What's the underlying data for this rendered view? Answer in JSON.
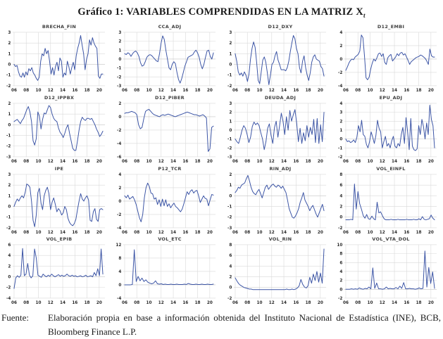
{
  "page": {
    "title_prefix": "Gráfico 1: ",
    "title_main": "VARIABLES COMPRENDIDAS EN LA MATRIZ X",
    "title_subscript": "t"
  },
  "footer": {
    "label": "Fuente:",
    "text": "Elaboración propia en base a información obtenida del Instituto Nacional de Estadística (INE), BCB, Bloomberg Finance L.P."
  },
  "colors": {
    "line": "#3B54A5",
    "grid": "#d9d9d9",
    "tick_text": "#2b2b2b",
    "subplot_title": "#404040"
  },
  "x_axis": {
    "lim": [
      2005.75,
      2020.95
    ],
    "ticks": [
      2006,
      2008,
      2010,
      2012,
      2014,
      2016,
      2018,
      2020
    ],
    "labels": [
      "06",
      "08",
      "10",
      "12",
      "14",
      "16",
      "18",
      "20"
    ],
    "data_start": 2006.0,
    "data_end": 2020.6
  },
  "chart_data": [
    {
      "type": "line",
      "title": "BRECHA_FIN",
      "ylim": [
        -2,
        3
      ],
      "yticks": [
        -2,
        -1,
        0,
        1,
        2,
        3
      ],
      "values": [
        0,
        -0.2,
        -0.1,
        -0.7,
        -1.1,
        -1.2,
        -0.8,
        -1.2,
        -0.7,
        -1.0,
        -0.4,
        -0.6,
        -0.3,
        -0.8,
        -1.0,
        -1.3,
        -1.5,
        -1.2,
        0.3,
        1.0,
        0.8,
        1.5,
        1.0,
        1.3,
        0.3,
        -0.9,
        -0.3,
        -1.0,
        -0.2,
        0.2,
        -0.6,
        0.6,
        0.3,
        -1.2,
        -0.8,
        -1.0,
        0.3,
        -0.2,
        -0.9,
        -0.3,
        0.2,
        -0.5,
        0.8,
        1.5,
        2.0,
        2.7,
        1.8,
        1.0,
        -0.5,
        0.5,
        1.0,
        2.3,
        1.8,
        2.5,
        2.0,
        1.7,
        1.5,
        -1.1,
        -1.3,
        -0.9,
        -0.9
      ]
    },
    {
      "type": "line",
      "title": "CCA_ADJ",
      "ylim": [
        -3,
        3
      ],
      "yticks": [
        -3,
        -2,
        -1,
        0,
        1,
        2,
        3
      ],
      "values": [
        0.6,
        0.5,
        0.7,
        0.6,
        0.3,
        0.6,
        0.8,
        0.9,
        0.7,
        0.3,
        -0.4,
        -0.8,
        -0.7,
        -0.3,
        0.2,
        0.4,
        0.5,
        0.4,
        0.2,
        0,
        -0.2,
        -0.3,
        0.6,
        1.8,
        2.6,
        2.2,
        1.0,
        0,
        -1.0,
        -1.2,
        -0.6,
        -0.3,
        -0.5,
        -1.5,
        -2.3,
        -2.7,
        -2.2,
        -1.5,
        -0.8,
        -0.3,
        0.2,
        0.3,
        0.4,
        0.5,
        0.8,
        1.0,
        0.7,
        0.2,
        -0.6,
        -1.1,
        -0.6,
        0.2,
        0.9,
        1.0,
        0.3,
        0,
        0.7
      ]
    },
    {
      "type": "line",
      "title": "D12_DXY",
      "ylim": [
        -2,
        3
      ],
      "yticks": [
        -2,
        -1,
        0,
        1,
        2,
        3
      ],
      "values": [
        1.0,
        0.3,
        -0.7,
        -1.0,
        -0.8,
        -1.1,
        -0.7,
        -1.0,
        -1.6,
        -0.9,
        0.5,
        1.5,
        2.1,
        1.6,
        0.2,
        -1.5,
        -1.8,
        -0.7,
        0.4,
        0.7,
        0.2,
        -0.8,
        -1.9,
        -1.0,
        0,
        0.2,
        0.8,
        1.2,
        0.4,
        0,
        -0.5,
        -0.5,
        -0.5,
        -0.6,
        -0.3,
        0.3,
        1.2,
        2.0,
        2.7,
        2.4,
        1.5,
        1.0,
        -0.3,
        -0.8,
        0.3,
        0.8,
        -0.3,
        -1.0,
        -1.5,
        -0.8,
        0.2,
        0.7,
        0.9,
        0.5,
        0.4,
        0.3,
        -0.2,
        -0.4,
        -1.1
      ]
    },
    {
      "type": "line",
      "title": "D12_EMBI",
      "ylim": [
        -4,
        4
      ],
      "yticks": [
        -4,
        -2,
        0,
        2,
        4
      ],
      "values": [
        -1.7,
        -1.2,
        -0.6,
        -0.2,
        0,
        -0.1,
        0.3,
        0.5,
        0.7,
        1.2,
        3.6,
        3.2,
        0.5,
        -2.8,
        -3.1,
        -2.7,
        -1.5,
        -0.6,
        0,
        -0.3,
        0.2,
        0.8,
        0.9,
        0.4,
        0.8,
        -0.5,
        -0.8,
        0.2,
        0.5,
        0.7,
        -0.3,
        0,
        0.3,
        0.8,
        0.5,
        0.9,
        1.0,
        0.6,
        0.8,
        0.3,
        -0.2,
        -0.8,
        -0.4,
        -0.2,
        0,
        0.2,
        0.3,
        0.4,
        0.6,
        0.5,
        0.3,
        0.1,
        -0.3,
        -0.8,
        1.5,
        0.5,
        0.3,
        0.3
      ]
    },
    {
      "type": "line",
      "title": "D12_IPPBX",
      "ylim": [
        -3,
        2
      ],
      "yticks": [
        -3,
        -2,
        -1,
        0,
        1,
        2
      ],
      "values": [
        0.3,
        0.4,
        0.5,
        0.3,
        0.1,
        0.4,
        0.6,
        1.0,
        1.4,
        1.7,
        1.2,
        0.3,
        -1.5,
        -1.9,
        -1.3,
        1.2,
        0.8,
        -0.4,
        0.5,
        1.1,
        1.0,
        1.4,
        1.8,
        1.6,
        1.0,
        0.6,
        0.4,
        0.3,
        -0.3,
        -0.7,
        -0.9,
        -1.2,
        -0.8,
        -0.3,
        0,
        -0.8,
        -1.5,
        -2.2,
        -2.4,
        -2.4,
        -1.5,
        -0.5,
        0.3,
        0.7,
        0.5,
        0.4,
        0.6,
        0.6,
        0.5,
        0.6,
        0.3,
        0,
        -0.4,
        -0.7,
        -1.1,
        -0.9,
        -0.6
      ]
    },
    {
      "type": "line",
      "title": "D12_PIBER",
      "ylim": [
        -6,
        2
      ],
      "yticks": [
        -6,
        -4,
        -2,
        0,
        2
      ],
      "values": [
        0.5,
        0.6,
        0.6,
        0.7,
        0.8,
        0.7,
        0.6,
        0.3,
        -1.2,
        -1.8,
        -1.6,
        -0.3,
        0.8,
        1.0,
        1.1,
        0.8,
        0.5,
        0.3,
        0.2,
        0.1,
        0,
        0.2,
        0.3,
        0.2,
        0.3,
        0.4,
        0.3,
        0.2,
        0.1,
        0,
        0.1,
        0.2,
        0.3,
        0.4,
        0.5,
        0.6,
        0.7,
        0.6,
        0.5,
        0.4,
        0.3,
        0.3,
        0.2,
        0.1,
        0.2,
        0.3,
        0.1,
        -0.2,
        -5.2,
        -4.8,
        -1.6,
        -1.4
      ]
    },
    {
      "type": "line",
      "title": "DEUDA_ADJ",
      "ylim": [
        -3,
        3
      ],
      "yticks": [
        -3,
        -2,
        -1,
        0,
        1,
        2,
        3
      ],
      "values": [
        -1.0,
        -1.3,
        -1.5,
        -0.8,
        0,
        0.5,
        0.2,
        -0.5,
        -1.4,
        -0.8,
        0.4,
        0.9,
        0.6,
        0.8,
        0.5,
        -0.3,
        -1.0,
        -2.2,
        -1.3,
        0.2,
        0.7,
        -0.6,
        -1.5,
        0.3,
        1.0,
        -0.8,
        0.5,
        1.9,
        1.0,
        -0.5,
        1.5,
        0,
        2.2,
        1.0,
        1.7,
        2.3,
        0.8,
        -1.3,
        0.2,
        -1.5,
        -0.3,
        -1.2,
        0.5,
        -0.8,
        0.3,
        -0.5,
        1.2,
        -1.4,
        1.3,
        -1.5,
        0.6,
        -1.3,
        2.0
      ]
    },
    {
      "type": "line",
      "title": "EPU_ADJ",
      "ylim": [
        -2,
        4
      ],
      "yticks": [
        -2,
        -1,
        0,
        1,
        2,
        3,
        4
      ],
      "values": [
        0,
        -0.3,
        -0.2,
        -0.4,
        -0.3,
        -0.1,
        -0.4,
        0.2,
        1.5,
        0.8,
        2.1,
        0.5,
        0.3,
        -0.6,
        -1.0,
        -0.3,
        0.8,
        0.2,
        -0.5,
        0.4,
        2.1,
        1.2,
        0.8,
        -1.0,
        -0.3,
        0.3,
        -0.8,
        -0.5,
        -1.0,
        -0.2,
        0.3,
        -0.8,
        -1.0,
        -0.5,
        -0.8,
        0.5,
        1.3,
        -0.5,
        2.4,
        0.8,
        -1.2,
        2.3,
        -0.8,
        -1.2,
        -1.3,
        -1.1,
        1.5,
        0.5,
        2.2,
        1.4,
        0,
        1.8,
        0.5,
        3.8,
        2.2,
        1.5,
        -1.0
      ]
    },
    {
      "type": "line",
      "title": "IPE",
      "ylim": [
        -2,
        3
      ],
      "yticks": [
        -2,
        -1,
        0,
        1,
        2,
        3
      ],
      "values": [
        0,
        0.4,
        0.7,
        0.5,
        0.8,
        1.0,
        0.8,
        1.3,
        2.1,
        2.0,
        1.8,
        0.5,
        -1.3,
        -1.9,
        -0.8,
        1.3,
        1.7,
        0.3,
        -0.3,
        1.0,
        1.5,
        1.8,
        1.2,
        -0.3,
        0.4,
        0.8,
        0.2,
        -0.5,
        -0.2,
        -0.4,
        -0.8,
        -0.6,
        0,
        -0.3,
        -1.1,
        -1.5,
        -1.7,
        -1.8,
        -1.6,
        -1.2,
        -0.3,
        0.5,
        1.2,
        0.7,
        0.5,
        0.8,
        1.0,
        0.6,
        -1.3,
        -1.4,
        -0.5,
        -0.2,
        -1.2,
        -1.4,
        -0.3,
        -0.2,
        -0.3
      ]
    },
    {
      "type": "line",
      "title": "P12_TCR",
      "ylim": [
        -4,
        4
      ],
      "yticks": [
        -4,
        -2,
        0,
        2,
        4
      ],
      "values": [
        0.8,
        0.5,
        0.9,
        0.3,
        0.5,
        0.7,
        0.2,
        -0.5,
        -1.5,
        -2.5,
        -3.1,
        -2.0,
        0.5,
        2.0,
        2.7,
        2.2,
        1.2,
        1.1,
        0.3,
        0.5,
        -0.5,
        0.2,
        -0.8,
        0.3,
        -0.7,
        0.2,
        -0.8,
        -0.4,
        -1.0,
        -0.6,
        -0.3,
        -0.8,
        -1.0,
        -1.3,
        -1.6,
        -1.2,
        -0.4,
        0.5,
        1.4,
        1.0,
        1.5,
        1.7,
        1.2,
        1.5,
        1.6,
        0.8,
        -0.2,
        0.3,
        0.8,
        0.4,
        0.3,
        -0.7,
        0.2,
        1.0,
        0.9
      ]
    },
    {
      "type": "line",
      "title": "RIN_ADJ",
      "ylim": [
        -3,
        2
      ],
      "yticks": [
        -3,
        -2,
        -1,
        0,
        1,
        2
      ],
      "values": [
        0.3,
        0.5,
        0.8,
        0.7,
        1.0,
        1.1,
        1.2,
        1.6,
        1.9,
        1.4,
        0.8,
        0.4,
        0.2,
        0.1,
        0.4,
        0.6,
        0.2,
        -0.2,
        0.3,
        0.8,
        1.0,
        0.6,
        0.8,
        1.0,
        1.1,
        0.9,
        0.8,
        1.0,
        0.9,
        0.7,
        0.9,
        0.6,
        0.3,
        -0.4,
        -1.2,
        -1.6,
        -2.0,
        -2.1,
        -1.9,
        -1.6,
        -1.2,
        -0.6,
        -0.2,
        0.3,
        -0.4,
        -0.7,
        -1.0,
        -1.4,
        -1.1,
        -0.9,
        -1.3,
        -1.7,
        -2.0,
        -1.6,
        -1.2,
        -0.8,
        -1.4
      ]
    },
    {
      "type": "line",
      "title": "VOL_EINFL",
      "ylim": [
        -2,
        8
      ],
      "yticks": [
        -2,
        0,
        2,
        4,
        6,
        8
      ],
      "values": [
        -0.5,
        -0.5,
        -0.5,
        -0.4,
        -0.5,
        6.2,
        1.5,
        4.8,
        2.5,
        1.5,
        0.3,
        -0.2,
        0.5,
        -0.3,
        -0.4,
        0.2,
        -0.3,
        -0.5,
        2.8,
        0.8,
        1.0,
        0.3,
        -0.3,
        -0.5,
        -0.5,
        -0.5,
        -0.4,
        -0.5,
        -0.5,
        -0.5,
        -0.4,
        -0.5,
        -0.5,
        -0.5,
        -0.5,
        -0.4,
        -0.5,
        -0.5,
        -0.5,
        -0.4,
        -0.5,
        -0.5,
        -0.3,
        -0.5,
        0.1,
        -0.4,
        -0.5,
        -0.4,
        -0.3,
        0.4,
        -0.2,
        -0.5
      ]
    },
    {
      "type": "line",
      "title": "VOL_EPIB",
      "ylim": [
        -4,
        6
      ],
      "yticks": [
        -4,
        -2,
        0,
        2,
        4,
        6
      ],
      "values": [
        -2.2,
        -0.2,
        0.2,
        -0.1,
        0.3,
        5.3,
        0.2,
        0.5,
        2.5,
        0.3,
        -0.2,
        0.2,
        5.2,
        3.5,
        0.3,
        0.1,
        -0.1,
        0.5,
        0.2,
        0,
        0.3,
        0.1,
        0.5,
        0.2,
        0,
        0.2,
        0.4,
        0.1,
        0.3,
        0.1,
        0.2,
        0.5,
        0.2,
        0.1,
        0.3,
        0.1,
        0.2,
        0,
        0.1,
        0.2,
        0,
        0.1,
        0.3,
        0,
        0.1,
        0.2,
        0,
        0.8,
        0.2,
        1.5,
        0.2,
        5.2,
        0.5
      ]
    },
    {
      "type": "line",
      "title": "VOL_ETC",
      "ylim": [
        -4,
        12
      ],
      "yticks": [
        -4,
        0,
        4,
        8,
        12
      ],
      "values": [
        0,
        0,
        0,
        0,
        0.1,
        10.5,
        1.0,
        2.5,
        1.2,
        2.0,
        1.0,
        1.5,
        0.8,
        0.5,
        0.3,
        0.5,
        1.2,
        0.3,
        0.2,
        0.3,
        0.1,
        0.2,
        0.1,
        0.1,
        0.2,
        0.1,
        0.1,
        0.2,
        0.1,
        0.1,
        0.1,
        0.2,
        0.1,
        0.4,
        0.2,
        0.1,
        0.1,
        0.2,
        0.1,
        0.1,
        0.2,
        0.1,
        0.1,
        0.2,
        0.1,
        0.1,
        0.2
      ]
    },
    {
      "type": "line",
      "title": "VOL_RIN",
      "ylim": [
        -2,
        8
      ],
      "yticks": [
        -2,
        0,
        2,
        4,
        6,
        8
      ],
      "values": [
        1.8,
        1.2,
        0.7,
        0.4,
        0.2,
        0,
        -0.1,
        -0.2,
        -0.3,
        -0.3,
        -0.4,
        -0.4,
        -0.4,
        -0.4,
        -0.4,
        -0.4,
        -0.4,
        -0.4,
        -0.4,
        -0.4,
        -0.4,
        -0.4,
        -0.4,
        -0.4,
        -0.4,
        -0.4,
        -0.4,
        -0.4,
        -0.4,
        -0.3,
        -0.4,
        -0.4,
        -0.3,
        -0.4,
        -0.3,
        -0.1,
        0.3,
        1.5,
        0.6,
        0.1,
        -0.1,
        0.3,
        1.9,
        0.8,
        2.5,
        1.3,
        3.0,
        1.0,
        2.7,
        0.8,
        7.2
      ]
    },
    {
      "type": "line",
      "title": "VOL_VTA_DOL",
      "ylim": [
        -2,
        10
      ],
      "yticks": [
        -2,
        0,
        2,
        4,
        6,
        8,
        10
      ],
      "values": [
        0,
        0,
        0,
        0.1,
        0,
        0.1,
        0,
        0.3,
        0.1,
        0,
        0.2,
        0.1,
        0.5,
        0.1,
        4.8,
        0.2,
        1.4,
        0.1,
        0.1,
        0,
        0.1,
        0.5,
        0.1,
        0.2,
        0.1,
        0.1,
        0.4,
        0.1,
        0.7,
        0.2,
        1.5,
        0.1,
        0.1,
        0.2,
        0.1,
        0.1,
        0,
        0.1,
        0.3,
        0.1,
        0.2,
        8.6,
        0.5,
        4.9,
        1.3,
        3.9,
        0.2
      ]
    }
  ]
}
